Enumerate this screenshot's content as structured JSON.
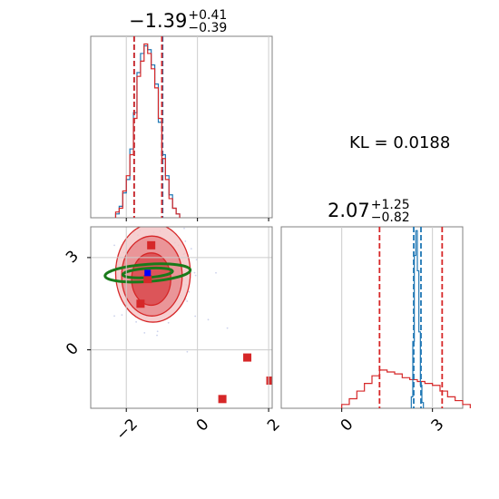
{
  "chart_data": [
    {
      "panel": "marginal-x",
      "type": "histogram",
      "title": {
        "value": "−1.39",
        "plus": "+0.41",
        "minus": "−0.39"
      },
      "xlim": [
        -3.0,
        2.1
      ],
      "x_ticks": [
        "−2",
        "0",
        "2"
      ],
      "red_dashed_lines": [
        -1.78,
        -1.0
      ],
      "blue_dashed_lines": [
        -1.78,
        -0.98
      ],
      "histogram_blue": {
        "edges": [
          -2.3,
          -2.2,
          -2.1,
          -2.0,
          -1.9,
          -1.8,
          -1.7,
          -1.6,
          -1.5,
          -1.4,
          -1.3,
          -1.2,
          -1.1,
          -1.0,
          -0.9,
          -0.8,
          -0.7,
          -0.6,
          -0.5
        ],
        "counts": [
          0.02,
          0.06,
          0.13,
          0.2,
          0.36,
          0.55,
          0.76,
          0.86,
          0.9,
          0.88,
          0.8,
          0.7,
          0.5,
          0.33,
          0.22,
          0.12,
          0.05,
          0.02
        ]
      },
      "histogram_red": {
        "edges": [
          -2.3,
          -2.2,
          -2.1,
          -2.0,
          -1.9,
          -1.8,
          -1.7,
          -1.6,
          -1.5,
          -1.4,
          -1.3,
          -1.2,
          -1.1,
          -1.0,
          -0.9,
          -0.8,
          -0.7,
          -0.6,
          -0.5
        ],
        "counts": [
          0.03,
          0.05,
          0.14,
          0.22,
          0.33,
          0.52,
          0.74,
          0.82,
          0.91,
          0.86,
          0.78,
          0.68,
          0.52,
          0.31,
          0.2,
          0.1,
          0.05,
          0.02
        ]
      },
      "colors": {
        "red": "#d62728",
        "blue": "#1f77b4"
      }
    },
    {
      "panel": "joint",
      "type": "scatter",
      "xlim": [
        -3.0,
        2.1
      ],
      "ylim": [
        -1.9,
        4.0
      ],
      "x_ticks": [
        "−2",
        "0",
        "2"
      ],
      "y_ticks": [
        "0",
        "3"
      ],
      "contour_levels_red": [
        {
          "cx": -1.25,
          "cy": 2.5,
          "rx": 1.05,
          "ry": 1.6
        },
        {
          "cx": -1.28,
          "cy": 2.4,
          "rx": 0.85,
          "ry": 1.3
        },
        {
          "cx": -1.3,
          "cy": 2.3,
          "rx": 0.55,
          "ry": 0.85
        }
      ],
      "green_ellipses": [
        {
          "cx": -1.4,
          "cy": 2.5,
          "rx": 1.2,
          "ry": 0.28,
          "angle_deg": -4
        },
        {
          "cx": -1.4,
          "cy": 2.5,
          "rx": 0.7,
          "ry": 0.15,
          "angle_deg": -4
        }
      ],
      "red_points": [
        [
          -1.3,
          3.4
        ],
        [
          -1.4,
          2.3
        ],
        [
          -1.6,
          1.5
        ],
        [
          0.7,
          -1.6
        ],
        [
          1.4,
          -0.25
        ],
        [
          2.05,
          -1.0
        ]
      ],
      "blue_point": [
        -1.4,
        2.5
      ],
      "colors": {
        "red": "#d62728",
        "green": "#1a7a1a",
        "blue": "#0000ff",
        "cloud": "#aab4e0"
      }
    },
    {
      "panel": "marginal-y",
      "type": "histogram",
      "title": {
        "value": "2.07",
        "plus": "+1.25",
        "minus": "−0.82"
      },
      "xlim": [
        -2.0,
        4.0
      ],
      "x_ticks": [
        "0",
        "3"
      ],
      "red_dashed_lines": [
        1.25,
        3.32
      ],
      "blue_dashed_lines": [
        2.38,
        2.62
      ],
      "histogram_blue": {
        "edges": [
          2.3,
          2.35,
          2.4,
          2.45,
          2.5,
          2.55,
          2.6,
          2.65,
          2.7
        ],
        "counts": [
          0.06,
          0.35,
          0.8,
          0.93,
          0.72,
          0.4,
          0.12,
          0.03
        ]
      },
      "histogram_red": {
        "edges": [
          0.0,
          0.25,
          0.5,
          0.75,
          1.0,
          1.25,
          1.5,
          1.75,
          2.0,
          2.25,
          2.5,
          2.75,
          3.0,
          3.25,
          3.5,
          3.75,
          4.0,
          4.25
        ],
        "counts": [
          0.02,
          0.05,
          0.09,
          0.13,
          0.17,
          0.2,
          0.19,
          0.18,
          0.16,
          0.15,
          0.14,
          0.13,
          0.12,
          0.09,
          0.06,
          0.04,
          0.02
        ]
      },
      "colors": {
        "red": "#d62728",
        "blue": "#1f77b4"
      }
    },
    {
      "panel": "annotation",
      "type": "table",
      "label": "KL = 0.0188"
    }
  ]
}
